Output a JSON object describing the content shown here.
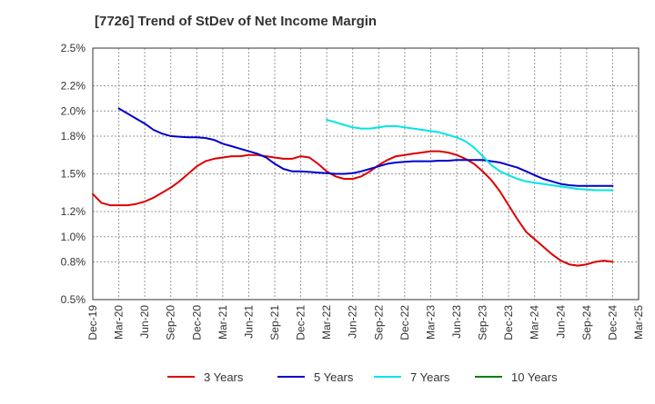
{
  "chart_data": {
    "type": "line",
    "title": "[7726]  Trend of StDev of Net Income Margin",
    "x_ticks": [
      "Dec-19",
      "Mar-20",
      "Jun-20",
      "Sep-20",
      "Dec-20",
      "Mar-21",
      "Jun-21",
      "Sep-21",
      "Dec-21",
      "Mar-22",
      "Jun-22",
      "Sep-22",
      "Dec-22",
      "Mar-23",
      "Jun-23",
      "Sep-23",
      "Dec-23",
      "Mar-24",
      "Jun-24",
      "Sep-24",
      "Dec-24",
      "Mar-25"
    ],
    "y_ticks": [
      "0.5%",
      "0.8%",
      "1.0%",
      "1.2%",
      "1.5%",
      "1.8%",
      "2.0%",
      "2.2%",
      "2.5%"
    ],
    "ylim": [
      0.5,
      2.5
    ],
    "y_unit": "%",
    "grid": true,
    "legend_position": "bottom",
    "series": [
      {
        "name": "3 Years",
        "color": "#dd0000",
        "x": [
          "Dec-19",
          "Jan-20",
          "Feb-20",
          "Mar-20",
          "Apr-20",
          "May-20",
          "Jun-20",
          "Jul-20",
          "Aug-20",
          "Sep-20",
          "Oct-20",
          "Nov-20",
          "Dec-20",
          "Jan-21",
          "Feb-21",
          "Mar-21",
          "Apr-21",
          "May-21",
          "Jun-21",
          "Jul-21",
          "Aug-21",
          "Sep-21",
          "Oct-21",
          "Nov-21",
          "Dec-21",
          "Jan-22",
          "Feb-22",
          "Mar-22",
          "Apr-22",
          "May-22",
          "Jun-22",
          "Jul-22",
          "Aug-22",
          "Sep-22",
          "Oct-22",
          "Nov-22",
          "Dec-22",
          "Jan-23",
          "Feb-23",
          "Mar-23",
          "Apr-23",
          "May-23",
          "Jun-23",
          "Jul-23",
          "Aug-23",
          "Sep-23",
          "Oct-23",
          "Nov-23",
          "Dec-23",
          "Jan-24",
          "Feb-24",
          "Mar-24",
          "Apr-24",
          "May-24",
          "Jun-24",
          "Jul-24",
          "Aug-24",
          "Sep-24",
          "Oct-24",
          "Nov-24",
          "Dec-24"
        ],
        "values": [
          1.34,
          1.27,
          1.25,
          1.25,
          1.25,
          1.26,
          1.28,
          1.31,
          1.35,
          1.39,
          1.44,
          1.5,
          1.56,
          1.6,
          1.62,
          1.63,
          1.64,
          1.64,
          1.65,
          1.65,
          1.64,
          1.63,
          1.62,
          1.62,
          1.64,
          1.63,
          1.58,
          1.52,
          1.48,
          1.46,
          1.46,
          1.48,
          1.52,
          1.57,
          1.61,
          1.64,
          1.65,
          1.66,
          1.67,
          1.68,
          1.68,
          1.67,
          1.65,
          1.62,
          1.58,
          1.52,
          1.45,
          1.36,
          1.25,
          1.14,
          1.04,
          0.98,
          0.92,
          0.86,
          0.81,
          0.78,
          0.77,
          0.78,
          0.8,
          0.81,
          0.8
        ]
      },
      {
        "name": "5 Years",
        "color": "#0000cc",
        "x": [
          "Mar-20",
          "Apr-20",
          "May-20",
          "Jun-20",
          "Jul-20",
          "Aug-20",
          "Sep-20",
          "Oct-20",
          "Nov-20",
          "Dec-20",
          "Jan-21",
          "Feb-21",
          "Mar-21",
          "Apr-21",
          "May-21",
          "Jun-21",
          "Jul-21",
          "Aug-21",
          "Sep-21",
          "Oct-21",
          "Nov-21",
          "Dec-21",
          "Jan-22",
          "Feb-22",
          "Mar-22",
          "Apr-22",
          "May-22",
          "Jun-22",
          "Jul-22",
          "Aug-22",
          "Sep-22",
          "Oct-22",
          "Nov-22",
          "Dec-22",
          "Jan-23",
          "Feb-23",
          "Mar-23",
          "Apr-23",
          "May-23",
          "Jun-23",
          "Jul-23",
          "Aug-23",
          "Sep-23",
          "Oct-23",
          "Nov-23",
          "Dec-23",
          "Jan-24",
          "Feb-24",
          "Mar-24",
          "Apr-24",
          "May-24",
          "Jun-24",
          "Jul-24",
          "Aug-24",
          "Sep-24",
          "Oct-24",
          "Nov-24",
          "Dec-24"
        ],
        "values": [
          2.02,
          1.98,
          1.94,
          1.9,
          1.85,
          1.82,
          1.8,
          1.795,
          1.79,
          1.79,
          1.785,
          1.77,
          1.74,
          1.72,
          1.7,
          1.68,
          1.66,
          1.63,
          1.58,
          1.54,
          1.52,
          1.52,
          1.515,
          1.51,
          1.505,
          1.5,
          1.5,
          1.505,
          1.52,
          1.54,
          1.56,
          1.58,
          1.59,
          1.595,
          1.6,
          1.6,
          1.6,
          1.605,
          1.605,
          1.61,
          1.61,
          1.61,
          1.61,
          1.6,
          1.59,
          1.57,
          1.55,
          1.52,
          1.49,
          1.46,
          1.44,
          1.42,
          1.41,
          1.405,
          1.405,
          1.405,
          1.405,
          1.405
        ]
      },
      {
        "name": "7 Years",
        "color": "#00e5e5",
        "x": [
          "Mar-22",
          "Apr-22",
          "May-22",
          "Jun-22",
          "Jul-22",
          "Aug-22",
          "Sep-22",
          "Oct-22",
          "Nov-22",
          "Dec-22",
          "Jan-23",
          "Feb-23",
          "Mar-23",
          "Apr-23",
          "May-23",
          "Jun-23",
          "Jul-23",
          "Aug-23",
          "Sep-23",
          "Oct-23",
          "Nov-23",
          "Dec-23",
          "Jan-24",
          "Feb-24",
          "Mar-24",
          "Apr-24",
          "May-24",
          "Jun-24",
          "Jul-24",
          "Aug-24",
          "Sep-24",
          "Oct-24",
          "Nov-24",
          "Dec-24"
        ],
        "values": [
          1.93,
          1.91,
          1.89,
          1.87,
          1.86,
          1.86,
          1.87,
          1.88,
          1.88,
          1.87,
          1.86,
          1.85,
          1.84,
          1.83,
          1.81,
          1.79,
          1.76,
          1.71,
          1.64,
          1.57,
          1.52,
          1.49,
          1.46,
          1.44,
          1.43,
          1.42,
          1.41,
          1.4,
          1.39,
          1.38,
          1.375,
          1.37,
          1.37,
          1.37
        ]
      },
      {
        "name": "10 Years",
        "color": "#008000",
        "x": [],
        "values": []
      }
    ]
  }
}
